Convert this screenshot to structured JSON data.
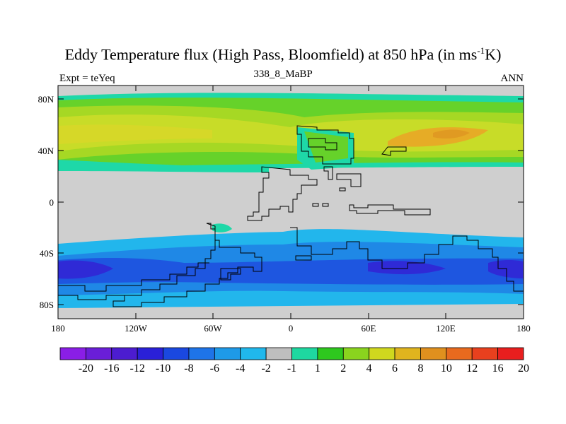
{
  "map": {
    "title_main": "Eddy Temperature flux (High Pass, Bloomfield) at 850 hPa (in ms",
    "title_sup": "-1",
    "title_end": "K)",
    "subtitle": "338_8_MaBP",
    "left_label": "Expt = teYeq",
    "right_label": "ANN",
    "lat_ticks": [
      "80N",
      "40N",
      "0",
      "40S",
      "80S"
    ],
    "lon_ticks": [
      "180",
      "120W",
      "60W",
      "0",
      "60E",
      "120E",
      "180"
    ]
  },
  "colorbar": {
    "colors": [
      "#8a1ee6",
      "#6a1ed8",
      "#4c1cd0",
      "#2a20d8",
      "#1a48e0",
      "#1e74e8",
      "#1e9ae8",
      "#20b8ec",
      "#bebebe",
      "#1ed8a0",
      "#2ec81e",
      "#8ad41e",
      "#d0d81e",
      "#e0b41e",
      "#e0901e",
      "#e86a1e",
      "#e8401e",
      "#e81e1e"
    ],
    "labels": [
      "-20",
      "-16",
      "-12",
      "-10",
      "-8",
      "-6",
      "-4",
      "-2",
      "-1",
      "1",
      "2",
      "4",
      "6",
      "8",
      "10",
      "12",
      "16",
      "20"
    ]
  },
  "colors": {
    "land_neutral": "#cfcfcf",
    "nh_green": "#66d22a",
    "nh_yellow": "#c8dc28",
    "nh_orange": "#e6ac26",
    "sh_light_blue": "#22b6ec",
    "sh_mid_blue": "#1f88e6",
    "sh_dark_blue": "#1e56e0",
    "sh_deep_blue": "#2f2ad6",
    "teal": "#1ed8a8"
  }
}
